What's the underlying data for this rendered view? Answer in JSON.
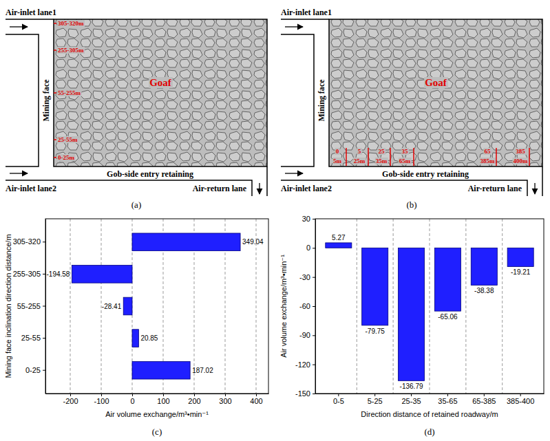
{
  "diagrams": [
    {
      "caption": "(a)",
      "inlet_1": "Air-inlet lane1",
      "face": "Mining face",
      "goaf": "Goaf",
      "entry": "Gob-side entry retaining",
      "inlet_2": "Air-inlet lane2",
      "return": "Air-return lane",
      "face_segments": [
        "305-320m",
        "255-305m",
        "55-255m",
        "25-55m",
        "0-25m"
      ]
    },
    {
      "caption": "(b)",
      "inlet_1": "Air-inlet lane1",
      "face": "Mining face",
      "goaf": "Goaf",
      "entry": "Gob-side entry retaining",
      "inlet_2": "Air-inlet lane2",
      "return": "Air-return lane",
      "entry_segments": [
        {
          "start": "0",
          "end": "5m"
        },
        {
          "start": "5",
          "end": "25m"
        },
        {
          "start": "25",
          "end": "35m"
        },
        {
          "start": "35",
          "end": "65m"
        },
        {
          "start": "65",
          "end": "385m"
        },
        {
          "start": "385",
          "end": "400m"
        }
      ]
    }
  ],
  "chart_data": [
    {
      "type": "bar",
      "orientation": "horizontal",
      "annotations": [
        "(c)"
      ],
      "x_label": "Air volume exchange/m³•min⁻¹",
      "y_label": "Mining face inclination direction distance/m",
      "categories": [
        "0-25",
        "25-55",
        "55-255",
        "255-305",
        "305-320"
      ],
      "values": [
        187.02,
        20.85,
        -28.41,
        -194.58,
        349.04
      ],
      "color": "#1f1fff",
      "xlim": [
        -280,
        440
      ],
      "xticks": [
        -200,
        -100,
        0,
        100,
        200,
        300,
        400
      ],
      "grid": true,
      "data_labels": true
    },
    {
      "type": "bar",
      "annotations": [
        "(d)"
      ],
      "x_label": "Direction distance of retained roadway/m",
      "y_label": "Air volume exchange/m³•min⁻¹",
      "categories": [
        "0-5",
        "5-25",
        "25-35",
        "35-65",
        "65-385",
        "385-400"
      ],
      "values": [
        5.27,
        -79.75,
        -136.79,
        -65.06,
        -38.38,
        -19.21
      ],
      "color": "#1f1fff",
      "ylim": [
        -150,
        30
      ],
      "yticks": [
        -150,
        -120,
        -90,
        -60,
        -30,
        0,
        30
      ],
      "grid": true,
      "data_labels": true
    }
  ]
}
